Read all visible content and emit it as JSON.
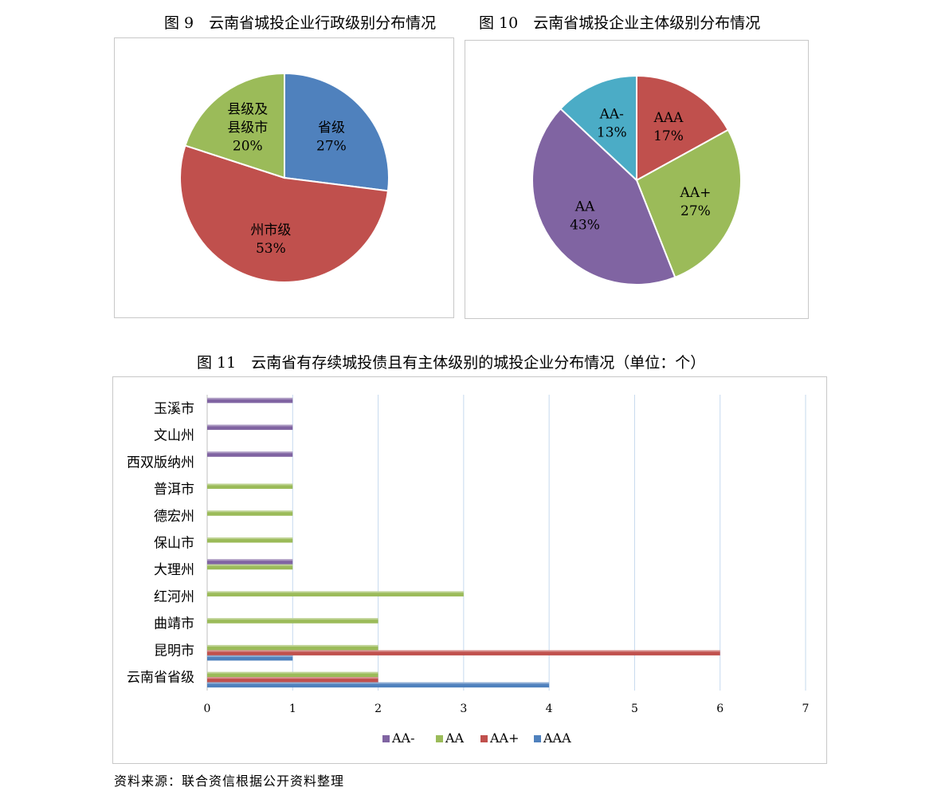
{
  "titles": {
    "fig9": "图 9　云南省城投企业行政级别分布情况",
    "fig10": "图 10　云南省城投企业主体级别分布情况",
    "fig11": "图 11　云南省有存续城投债且有主体级别的城投企业分布情况（单位：个）"
  },
  "source": "资料来源：联合资信根据公开资料整理",
  "chart_data": [
    {
      "type": "pie",
      "title": "图 9　云南省城投企业行政级别分布情况",
      "slices": [
        {
          "label": "省级",
          "label_lines": [
            "省级"
          ],
          "value": 27,
          "pct": "27%",
          "color": "#4f81bd"
        },
        {
          "label": "州市级",
          "label_lines": [
            "州市级"
          ],
          "value": 53,
          "pct": "53%",
          "color": "#c0504d"
        },
        {
          "label": "县级及县级市",
          "label_lines": [
            "县级及",
            "县级市"
          ],
          "value": 20,
          "pct": "20%",
          "color": "#9bbb59"
        }
      ]
    },
    {
      "type": "pie",
      "title": "图 10　云南省城投企业主体级别分布情况",
      "slices": [
        {
          "label": "AAA",
          "label_lines": [
            "AAA"
          ],
          "value": 17,
          "pct": "17%",
          "color": "#c0504d"
        },
        {
          "label": "AA+",
          "label_lines": [
            "AA+"
          ],
          "value": 27,
          "pct": "27%",
          "color": "#9bbb59"
        },
        {
          "label": "AA",
          "label_lines": [
            "AA"
          ],
          "value": 43,
          "pct": "43%",
          "color": "#8064a2"
        },
        {
          "label": "AA-",
          "label_lines": [
            "AA-"
          ],
          "value": 13,
          "pct": "13%",
          "color": "#4bacc6"
        }
      ]
    },
    {
      "type": "bar",
      "orientation": "horizontal",
      "title": "图 11　云南省有存续城投债且有主体级别的城投企业分布情况（单位：个）",
      "categories": [
        "云南省省级",
        "昆明市",
        "曲靖市",
        "红河州",
        "大理州",
        "保山市",
        "德宏州",
        "普洱市",
        "西双版纳州",
        "文山州",
        "玉溪市"
      ],
      "series": [
        {
          "name": "AA-",
          "color": "#8064a2",
          "values": [
            0,
            0,
            0,
            0,
            1,
            0,
            0,
            0,
            1,
            1,
            1
          ]
        },
        {
          "name": "AA",
          "color": "#9bbb59",
          "values": [
            2,
            2,
            2,
            3,
            1,
            1,
            1,
            1,
            0,
            0,
            0
          ]
        },
        {
          "name": "AA+",
          "color": "#c0504d",
          "values": [
            2,
            6,
            0,
            0,
            0,
            0,
            0,
            0,
            0,
            0,
            0
          ]
        },
        {
          "name": "AAA",
          "color": "#4f81bd",
          "values": [
            4,
            1,
            0,
            0,
            0,
            0,
            0,
            0,
            0,
            0,
            0
          ]
        }
      ],
      "xlim": [
        0,
        7
      ],
      "xticks": [
        "0",
        "1",
        "2",
        "3",
        "4",
        "5",
        "6",
        "7"
      ],
      "grid": true,
      "legend": "bottom"
    }
  ]
}
